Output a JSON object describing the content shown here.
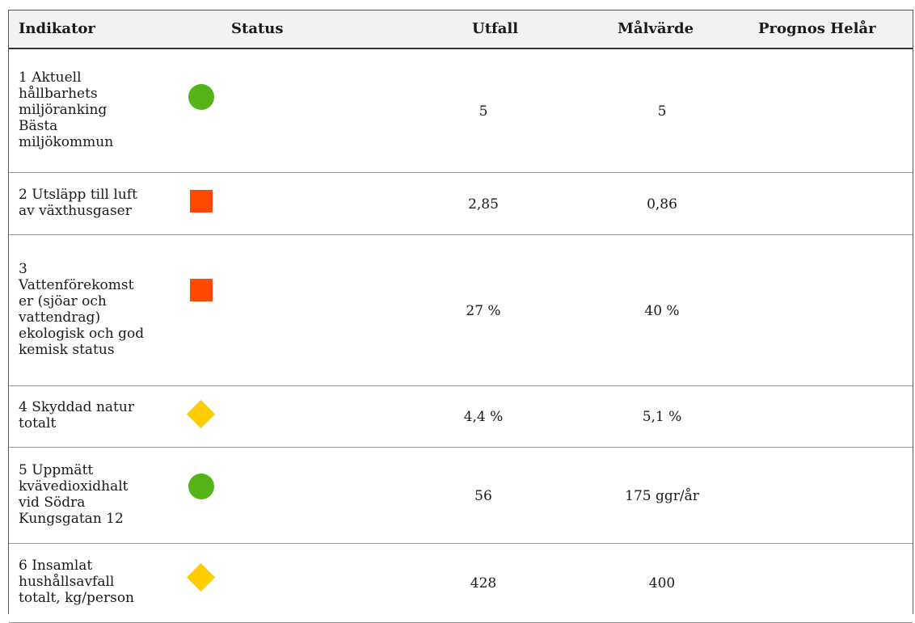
{
  "headers": {
    "indikator": "Indikator",
    "status": "Status",
    "utfall": "Utfall",
    "malvarde": "Målvärde",
    "prognos": "Prognos Helår"
  },
  "rows": [
    {
      "indikator": [
        "1 Aktuell",
        "hållbarhets",
        "miljöranking",
        "Bästa",
        "miljökommun"
      ],
      "status": "green-circle",
      "utfall": "5",
      "malvarde": "5",
      "prognos": ""
    },
    {
      "indikator": [
        "2 Utsläpp till luft",
        "av växthusgaser"
      ],
      "status": "red-square",
      "utfall": "2,85",
      "malvarde": "0,86",
      "prognos": ""
    },
    {
      "indikator": [
        "3",
        "Vattenförekomst",
        "er (sjöar och",
        "vattendrag)",
        "ekologisk och god",
        "kemisk status"
      ],
      "status": "red-square",
      "utfall": "27 %",
      "malvarde": "40 %",
      "prognos": ""
    },
    {
      "indikator": [
        "4 Skyddad natur",
        "totalt"
      ],
      "status": "yellow-diamond",
      "utfall": "4,4 %",
      "malvarde": "5,1 %",
      "prognos": ""
    },
    {
      "indikator": [
        "5 Uppmätt",
        "kvävedioxidhalt",
        "vid Södra",
        "Kungsgatan 12"
      ],
      "status": "green-circle",
      "utfall": "56",
      "malvarde": "175 ggr/år",
      "prognos": ""
    },
    {
      "indikator": [
        "6 Insamlat",
        "hushållsavfall",
        "totalt, kg/person"
      ],
      "status": "yellow-diamond",
      "utfall": "428",
      "malvarde": "400",
      "prognos": ""
    }
  ],
  "status_colors": {
    "green-circle": "#55b31a",
    "red-square": "#ff4a00",
    "yellow-diamond": "#ffcc00"
  }
}
